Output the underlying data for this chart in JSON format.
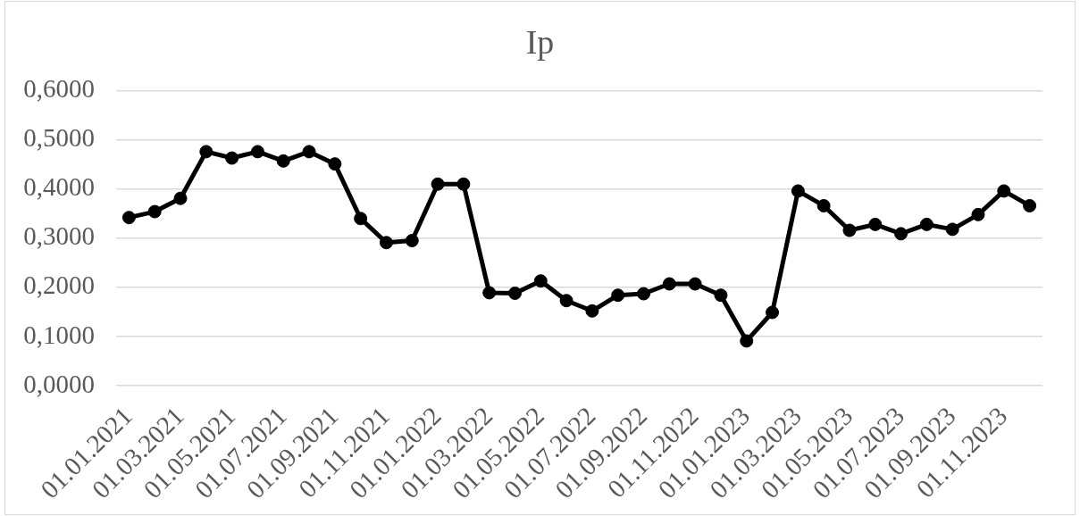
{
  "chart_data": {
    "type": "line",
    "title": "Ip",
    "categories": [
      "01.01.2021",
      null,
      "01.03.2021",
      null,
      "01.05.2021",
      null,
      "01.07.2021",
      null,
      "01.09.2021",
      null,
      "01.11.2021",
      null,
      "01.01.2022",
      null,
      "01.03.2022",
      null,
      "01.05.2022",
      null,
      "01.07.2022",
      null,
      "01.09.2022",
      null,
      "01.11.2022",
      null,
      "01.01.2023",
      null,
      "01.03.2023",
      null,
      "01.05.2023",
      null,
      "01.07.2023",
      null,
      "01.09.2023",
      null,
      "01.11.2023",
      null
    ],
    "series": [
      {
        "color": "#000000",
        "values": [
          0.342,
          0.354,
          0.381,
          0.476,
          0.463,
          0.476,
          0.457,
          0.476,
          0.451,
          0.34,
          0.291,
          0.295,
          0.41,
          0.41,
          0.189,
          0.188,
          0.213,
          0.173,
          0.152,
          0.184,
          0.187,
          0.207,
          0.207,
          0.184,
          0.091,
          0.149,
          0.396,
          0.366,
          0.316,
          0.328,
          0.309,
          0.328,
          0.318,
          0.348,
          0.396,
          0.366
        ]
      }
    ],
    "ylim": [
      0,
      0.6
    ],
    "yticks": [
      {
        "value": 0,
        "label": "0,0000"
      },
      {
        "value": 0.1,
        "label": "0,1000"
      },
      {
        "value": 0.2,
        "label": "0,2000"
      },
      {
        "value": 0.3,
        "label": "0,3000"
      },
      {
        "value": 0.4,
        "label": "0,4000"
      },
      {
        "value": 0.5,
        "label": "0,5000"
      },
      {
        "value": 0.6,
        "label": "0,6000"
      }
    ],
    "grid": "y",
    "marker": "circle",
    "line_style": "solid"
  }
}
